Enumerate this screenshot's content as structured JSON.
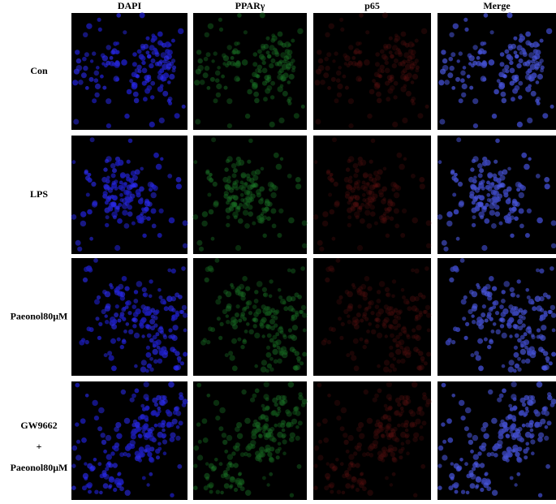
{
  "columns": [
    "DAPI",
    "PPARγ",
    "p65",
    "Merge"
  ],
  "rows": [
    [
      "Con"
    ],
    [
      "LPS"
    ],
    [
      "Paeonol80μM"
    ],
    [
      "GW9662",
      "+",
      "Paeonol80μM"
    ]
  ]
}
